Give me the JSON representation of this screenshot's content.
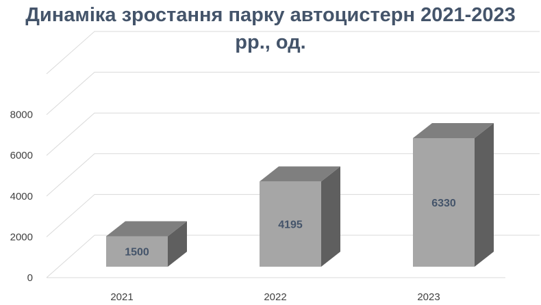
{
  "chart_data": {
    "type": "bar",
    "title": "Динаміка зростання парку автоцистерн  2021-2023 рр., од.",
    "title_lines": [
      "Динаміка зростання парку автоцистерн  2021-2023",
      "рр., од."
    ],
    "categories": [
      "2021",
      "2022",
      "2023"
    ],
    "values": [
      1500,
      4195,
      6330
    ],
    "data_labels": [
      "1500",
      "4195",
      "6330"
    ],
    "y_ticks": [
      0,
      2000,
      4000,
      6000,
      8000
    ],
    "ylim": [
      0,
      10000
    ],
    "xlabel": "",
    "ylabel": "",
    "grid": true,
    "legend": "none",
    "style": "3d-column",
    "colors": {
      "title": "#44546a",
      "data_label": "#44546a",
      "bar_front": "#a6a6a6",
      "bar_top": "#7f7f7f",
      "bar_side": "#5f5f5f",
      "grid": "#d9d9d9",
      "tick_label": "#404040"
    }
  }
}
